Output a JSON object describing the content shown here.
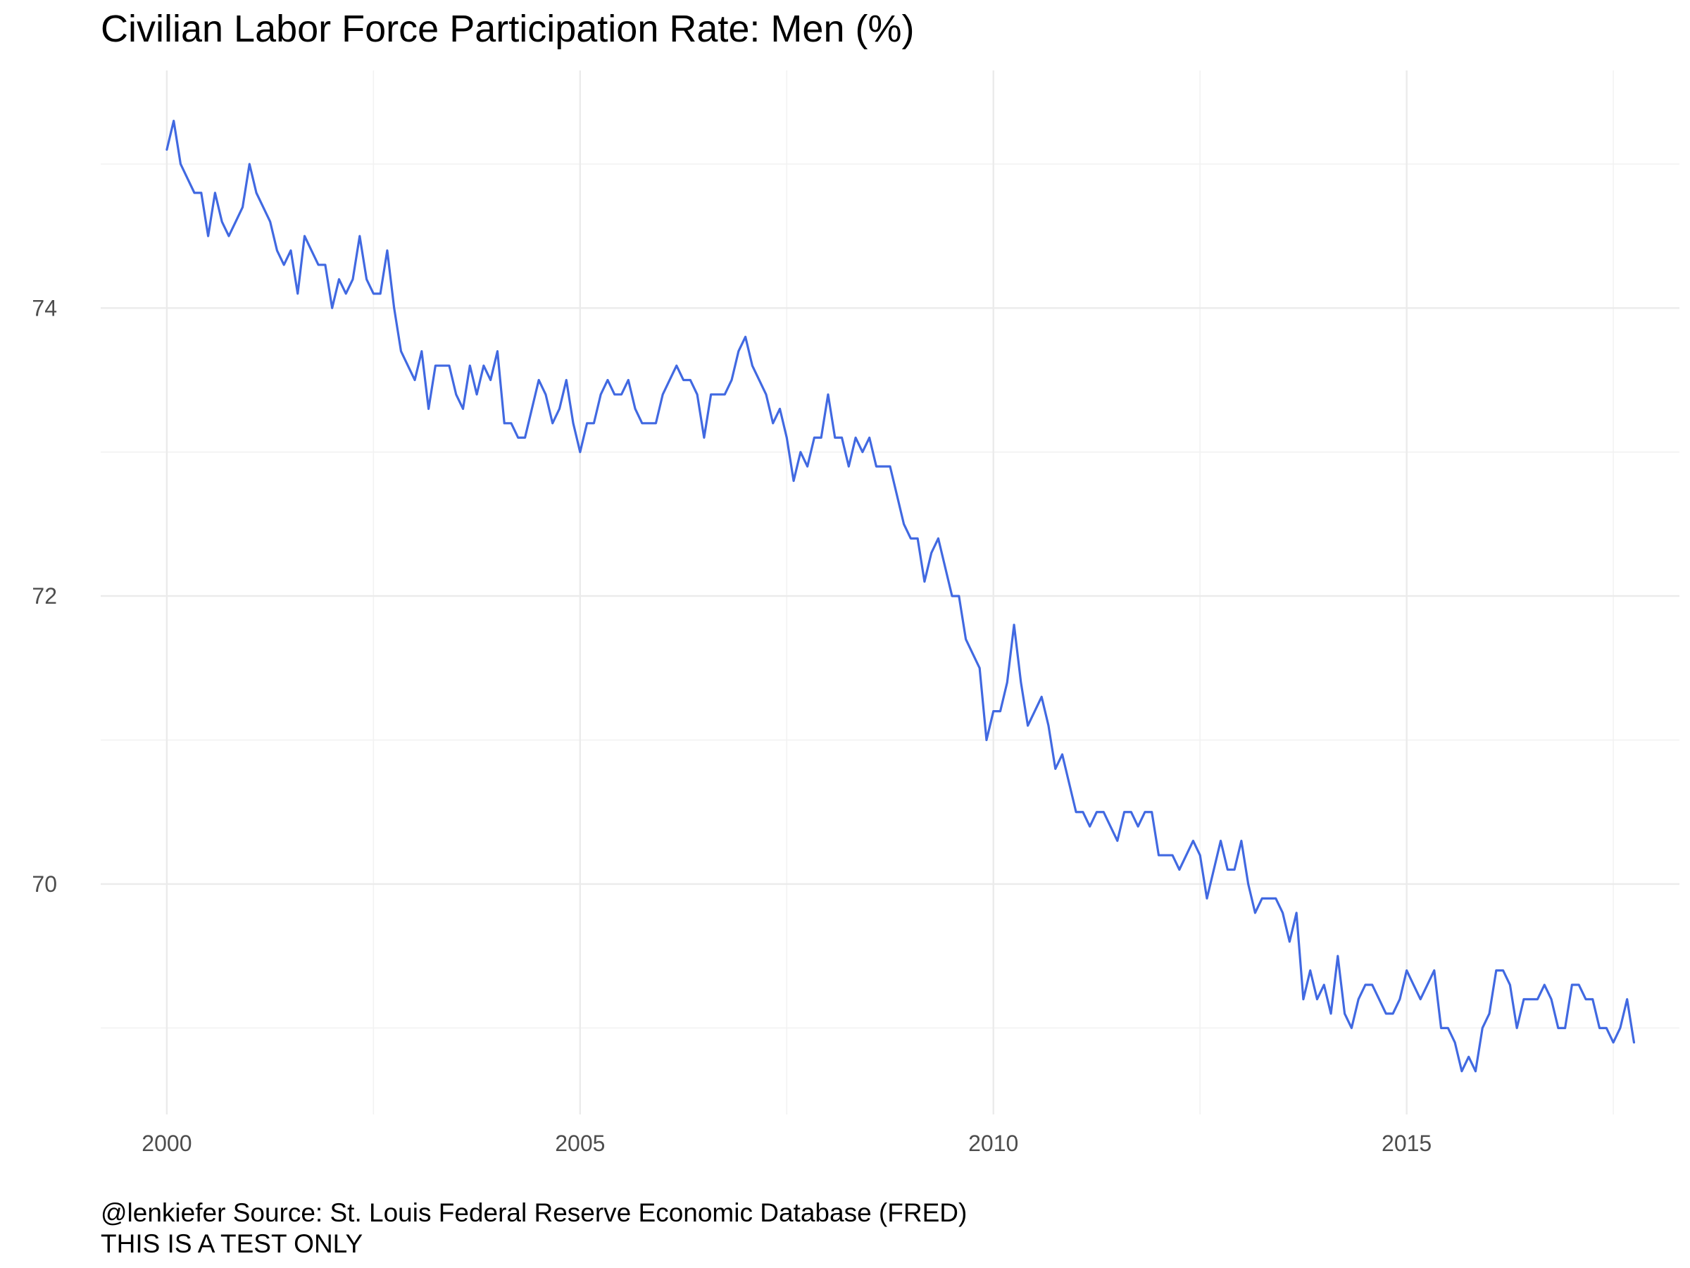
{
  "chart_data": {
    "type": "line",
    "title": "Civilian Labor Force Participation Rate: Men (%)",
    "xlabel": "",
    "ylabel": "",
    "caption": [
      "@lenkiefer Source: St. Louis Federal Reserve Economic Database (FRED)",
      "THIS IS A TEST ONLY"
    ],
    "x_ticks": [
      2000,
      2005,
      2010,
      2015
    ],
    "y_ticks": [
      70,
      72,
      74
    ],
    "xlim": [
      1999.2,
      2018.3
    ],
    "ylim": [
      68.4,
      75.65
    ],
    "grid": true,
    "line_color": "#4169E1",
    "x_start": "2000-01",
    "x_step": "month",
    "series": [
      {
        "values": [
          75.1,
          75.3,
          75.0,
          74.9,
          74.8,
          74.8,
          74.5,
          74.8,
          74.6,
          74.5,
          74.6,
          74.7,
          75.0,
          74.8,
          74.7,
          74.6,
          74.4,
          74.3,
          74.4,
          74.1,
          74.5,
          74.4,
          74.3,
          74.3,
          74.0,
          74.2,
          74.1,
          74.2,
          74.5,
          74.2,
          74.1,
          74.1,
          74.4,
          74.0,
          73.7,
          73.6,
          73.5,
          73.7,
          73.3,
          73.6,
          73.6,
          73.6,
          73.4,
          73.3,
          73.6,
          73.4,
          73.6,
          73.5,
          73.7,
          73.2,
          73.2,
          73.1,
          73.1,
          73.3,
          73.5,
          73.4,
          73.2,
          73.3,
          73.5,
          73.2,
          73.0,
          73.2,
          73.2,
          73.4,
          73.5,
          73.4,
          73.4,
          73.5,
          73.3,
          73.2,
          73.2,
          73.2,
          73.4,
          73.5,
          73.6,
          73.5,
          73.5,
          73.4,
          73.1,
          73.4,
          73.4,
          73.4,
          73.5,
          73.7,
          73.8,
          73.6,
          73.5,
          73.4,
          73.2,
          73.3,
          73.1,
          72.8,
          73.0,
          72.9,
          73.1,
          73.1,
          73.4,
          73.1,
          73.1,
          72.9,
          73.1,
          73.0,
          73.1,
          72.9,
          72.9,
          72.9,
          72.7,
          72.5,
          72.4,
          72.4,
          72.1,
          72.3,
          72.4,
          72.2,
          72.0,
          72.0,
          71.7,
          71.6,
          71.5,
          71.0,
          71.2,
          71.2,
          71.4,
          71.8,
          71.4,
          71.1,
          71.2,
          71.3,
          71.1,
          70.8,
          70.9,
          70.7,
          70.5,
          70.5,
          70.4,
          70.5,
          70.5,
          70.4,
          70.3,
          70.5,
          70.5,
          70.4,
          70.5,
          70.5,
          70.2,
          70.2,
          70.2,
          70.1,
          70.2,
          70.3,
          70.2,
          69.9,
          70.1,
          70.3,
          70.1,
          70.1,
          70.3,
          70.0,
          69.8,
          69.9,
          69.9,
          69.9,
          69.8,
          69.6,
          69.8,
          69.2,
          69.4,
          69.2,
          69.3,
          69.1,
          69.5,
          69.1,
          69.0,
          69.2,
          69.3,
          69.3,
          69.2,
          69.1,
          69.1,
          69.2,
          69.4,
          69.3,
          69.2,
          69.3,
          69.4,
          69.0,
          69.0,
          68.9,
          68.7,
          68.8,
          68.7,
          69.0,
          69.1,
          69.4,
          69.4,
          69.3,
          69.0,
          69.2,
          69.2,
          69.2,
          69.3,
          69.2,
          69.0,
          69.0,
          69.3,
          69.3,
          69.2,
          69.2,
          69.0,
          69.0,
          68.9,
          69.0,
          69.2,
          68.9
        ]
      }
    ]
  }
}
